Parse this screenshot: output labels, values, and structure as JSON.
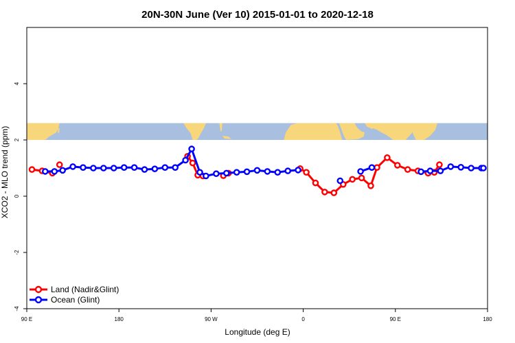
{
  "chart_data": {
    "type": "line",
    "title": "20N-30N June (Ver 10)   2015-01-01 to 2020-12-18",
    "xlabel": "Longitude (deg E)",
    "ylabel": "XCO2 - MLO trend (ppm)",
    "xlim": [
      90,
      540
    ],
    "ylim": [
      -4,
      6
    ],
    "x_ticks": [
      {
        "value": 90,
        "label": "90 E"
      },
      {
        "value": 180,
        "label": "180"
      },
      {
        "value": 270,
        "label": "90 W"
      },
      {
        "value": 360,
        "label": "0"
      },
      {
        "value": 450,
        "label": "90 E"
      },
      {
        "value": 540,
        "label": "180"
      }
    ],
    "y_ticks": [
      {
        "value": -4,
        "label": "-4"
      },
      {
        "value": -2,
        "label": "-2"
      },
      {
        "value": 0,
        "label": "0"
      },
      {
        "value": 2,
        "label": "2"
      },
      {
        "value": 4,
        "label": "4"
      }
    ],
    "grid": false,
    "legend_position": "bottom-left",
    "map_strip": {
      "y_range": [
        2.0,
        2.6
      ],
      "ocean_color": "#a9bfdf",
      "land_color": "#f7d67c"
    },
    "series": [
      {
        "name": "Land (Nadir&Glint)",
        "color": "#ff0000",
        "segments": [
          {
            "x": [
              95,
              105,
              115
            ],
            "y": [
              0.95,
              0.9,
              0.82
            ]
          },
          {
            "x": [
              122
            ],
            "y": [
              1.12
            ]
          },
          {
            "x": [
              247,
              252,
              257,
              262
            ],
            "y": [
              1.42,
              1.18,
              0.75,
              0.72
            ]
          },
          {
            "x": [
              282,
              287
            ],
            "y": [
              0.73,
              0.82
            ]
          },
          {
            "x": [
              357,
              363,
              372,
              381,
              390,
              399,
              408,
              417,
              426,
              432,
              442,
              452,
              462,
              472,
              482,
              488
            ],
            "y": [
              0.98,
              0.85,
              0.47,
              0.15,
              0.12,
              0.42,
              0.6,
              0.65,
              0.37,
              1.02,
              1.37,
              1.1,
              0.95,
              0.9,
              0.82,
              0.85
            ]
          },
          {
            "x": [
              488,
              493
            ],
            "y": [
              0.85,
              1.12
            ]
          }
        ]
      },
      {
        "name": "Ocean (Glint)",
        "color": "#0000ff",
        "segments": [
          {
            "x": [
              108,
              117,
              125,
              135,
              145,
              155,
              165,
              175,
              185,
              195,
              205,
              215,
              225,
              235,
              245,
              251,
              259,
              265,
              275,
              285,
              295,
              305,
              315,
              325,
              335,
              345,
              355
            ],
            "y": [
              0.88,
              0.88,
              0.92,
              1.05,
              1.02,
              1.0,
              1.0,
              1.0,
              1.02,
              1.02,
              0.95,
              0.97,
              1.02,
              1.02,
              1.28,
              1.68,
              0.85,
              0.72,
              0.8,
              0.82,
              0.85,
              0.87,
              0.92,
              0.88,
              0.85,
              0.9,
              0.93
            ]
          },
          {
            "x": [
              396
            ],
            "y": [
              0.55
            ]
          },
          {
            "x": [
              416,
              427
            ],
            "y": [
              0.88,
              1.02
            ]
          },
          {
            "x": [
              475,
              484,
              494,
              504,
              514,
              524,
              534,
              536
            ],
            "y": [
              0.87,
              0.9,
              0.9,
              1.05,
              1.03,
              1.0,
              1.0,
              1.0
            ]
          }
        ]
      }
    ]
  }
}
